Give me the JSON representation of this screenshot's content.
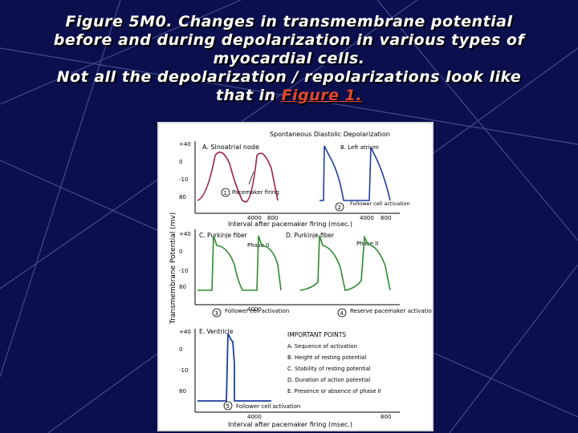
{
  "slide": {
    "title_line1": "Figure 5M0. Changes in transmembrane potential",
    "title_line2": "before and during depolarization in various types of",
    "title_line3": "myocardial cells.",
    "title_line4": "Not all the depolarization / repolarizations look like",
    "title_line5_prefix": "that in ",
    "title_link": "Figure 1.",
    "link_color": "#e0472c",
    "background_color": "#0b0f4d"
  },
  "figure": {
    "top_label": "Spontaneous Diastolic Depolarization",
    "y_axis_label": "Transmembrane Potential (mv)",
    "x_axis_label": "Interval after pacemaker firing (msec.)",
    "ticks_left": [
      "+40",
      "0",
      "-10",
      "80"
    ],
    "x_ticks": [
      "4000",
      "800"
    ],
    "panel_a": {
      "label": "A. Sinoatrial node",
      "note_num": "1",
      "note": "Pacemaker firing"
    },
    "panel_b": {
      "label": "B. Left atrium",
      "note_num": "2",
      "note": "Follower cell activation"
    },
    "panel_c": {
      "label": "C. Purkinje fiber",
      "phase": "Phase II",
      "note_num": "3",
      "note": "Follower cell activation"
    },
    "panel_d": {
      "label": "D. Purkinje fiber",
      "phase": "Phase II",
      "note_num": "4",
      "note": "Reserve pacemaker activation"
    },
    "panel_e": {
      "label": "E. Ventricle",
      "note_num": "5",
      "note": "Follower cell activation"
    },
    "important_points": {
      "heading": "IMPORTANT POINTS",
      "items": [
        "A. Sequence of activation",
        "B. Height of resting potential",
        "C. Stability of resting potential",
        "D. Duration of action potential",
        "E. Presence or absence of phase II"
      ]
    }
  }
}
